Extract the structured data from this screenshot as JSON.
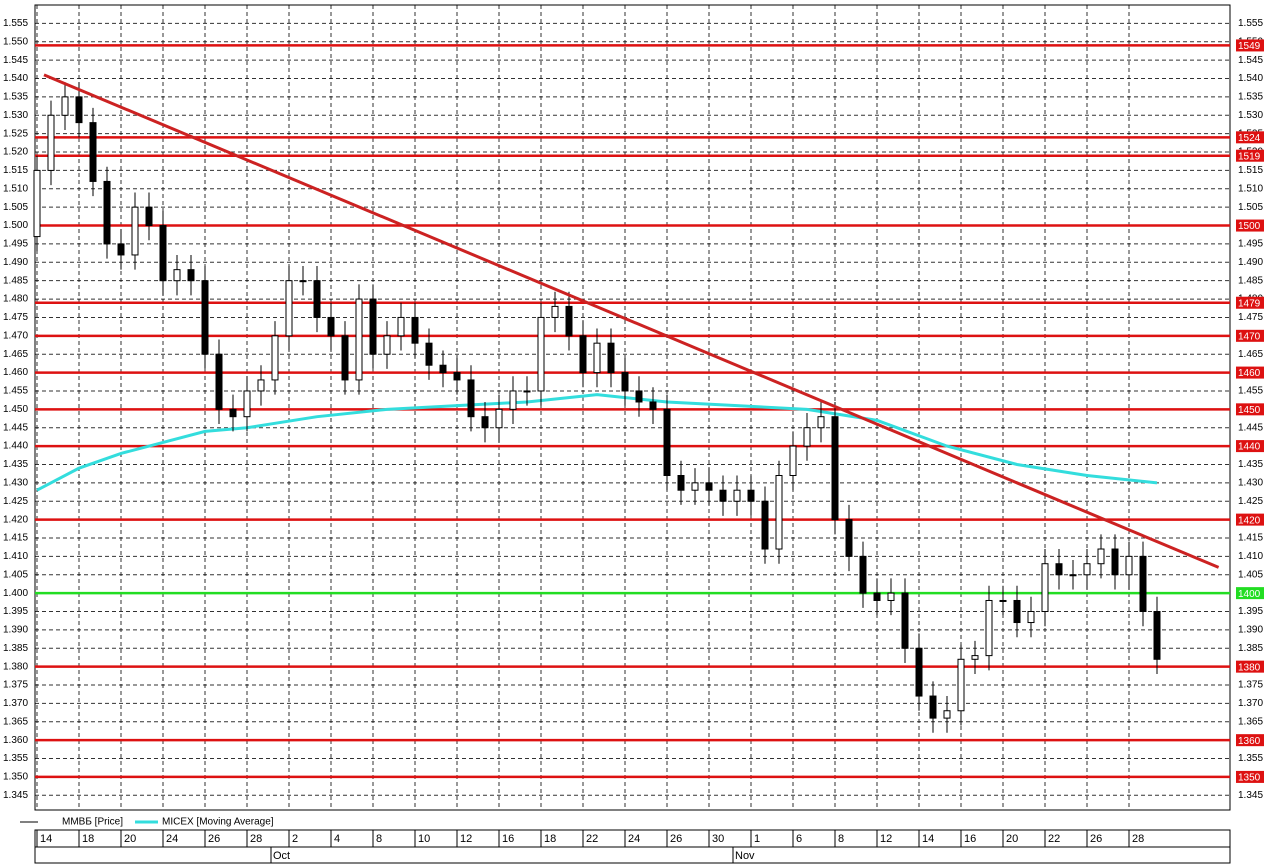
{
  "chart_data": {
    "type": "candlestick",
    "categories": [
      "14",
      "18",
      "20",
      "24",
      "26",
      "28",
      "2",
      "4",
      "8",
      "10",
      "12",
      "16",
      "18",
      "22",
      "24",
      "26",
      "30",
      "1",
      "6",
      "8",
      "12",
      "14",
      "16",
      "20",
      "22",
      "26",
      "28"
    ],
    "months": [
      {
        "value": 18,
        "label": "Oct"
      },
      {
        "value": 51,
        "label": "Nov"
      }
    ],
    "open": [
      1.497,
      1.515,
      1.53,
      1.535,
      1.528,
      1.512,
      1.495,
      1.492,
      1.505,
      1.5,
      1.485,
      1.488,
      1.485,
      1.465,
      1.45,
      1.448,
      1.455,
      1.458,
      1.47,
      1.485,
      1.485,
      1.475,
      1.47,
      1.458,
      1.48,
      1.465,
      1.47,
      1.475,
      1.468,
      1.462,
      1.46,
      1.458,
      1.448,
      1.445,
      1.45,
      1.455,
      1.455,
      1.475,
      1.478,
      1.47,
      1.46,
      1.468,
      1.46,
      1.455,
      1.452,
      1.45,
      1.432,
      1.428,
      1.43,
      1.428,
      1.425,
      1.428,
      1.425,
      1.412,
      1.432,
      1.44,
      1.445,
      1.448,
      1.42,
      1.41,
      1.4,
      1.398,
      1.4,
      1.385,
      1.372,
      1.366,
      1.368,
      1.382,
      1.383,
      1.398,
      1.398,
      1.392,
      1.395,
      1.408,
      1.405,
      1.405,
      1.408,
      1.412,
      1.405,
      1.41,
      1.395
    ],
    "high": [
      1.519,
      1.534,
      1.539,
      1.539,
      1.532,
      1.516,
      1.499,
      1.509,
      1.509,
      1.504,
      1.492,
      1.492,
      1.489,
      1.469,
      1.454,
      1.459,
      1.462,
      1.474,
      1.489,
      1.489,
      1.489,
      1.479,
      1.474,
      1.484,
      1.484,
      1.474,
      1.479,
      1.479,
      1.472,
      1.466,
      1.464,
      1.462,
      1.452,
      1.454,
      1.459,
      1.459,
      1.479,
      1.482,
      1.482,
      1.474,
      1.472,
      1.472,
      1.464,
      1.459,
      1.456,
      1.454,
      1.436,
      1.434,
      1.434,
      1.432,
      1.432,
      1.432,
      1.429,
      1.436,
      1.444,
      1.449,
      1.452,
      1.452,
      1.424,
      1.414,
      1.404,
      1.404,
      1.404,
      1.389,
      1.376,
      1.372,
      1.386,
      1.387,
      1.402,
      1.402,
      1.402,
      1.399,
      1.412,
      1.412,
      1.409,
      1.412,
      1.416,
      1.416,
      1.414,
      1.414,
      1.399
    ],
    "low": [
      1.493,
      1.511,
      1.526,
      1.524,
      1.508,
      1.491,
      1.488,
      1.488,
      1.496,
      1.481,
      1.481,
      1.481,
      1.461,
      1.446,
      1.444,
      1.444,
      1.451,
      1.454,
      1.466,
      1.481,
      1.471,
      1.466,
      1.454,
      1.454,
      1.461,
      1.461,
      1.466,
      1.464,
      1.458,
      1.456,
      1.454,
      1.444,
      1.441,
      1.441,
      1.446,
      1.451,
      1.451,
      1.471,
      1.466,
      1.456,
      1.456,
      1.456,
      1.451,
      1.448,
      1.446,
      1.428,
      1.424,
      1.424,
      1.424,
      1.421,
      1.421,
      1.421,
      1.408,
      1.408,
      1.428,
      1.436,
      1.441,
      1.416,
      1.406,
      1.396,
      1.394,
      1.394,
      1.381,
      1.368,
      1.362,
      1.362,
      1.364,
      1.378,
      1.379,
      1.394,
      1.388,
      1.388,
      1.391,
      1.401,
      1.401,
      1.401,
      1.404,
      1.401,
      1.401,
      1.391,
      1.378
    ],
    "close": [
      1.515,
      1.53,
      1.535,
      1.528,
      1.512,
      1.495,
      1.492,
      1.505,
      1.5,
      1.485,
      1.488,
      1.485,
      1.465,
      1.45,
      1.448,
      1.455,
      1.458,
      1.47,
      1.485,
      1.485,
      1.475,
      1.47,
      1.458,
      1.48,
      1.465,
      1.47,
      1.475,
      1.468,
      1.462,
      1.46,
      1.458,
      1.448,
      1.445,
      1.45,
      1.455,
      1.455,
      1.475,
      1.478,
      1.47,
      1.46,
      1.468,
      1.46,
      1.455,
      1.452,
      1.45,
      1.432,
      1.428,
      1.43,
      1.428,
      1.425,
      1.428,
      1.425,
      1.412,
      1.432,
      1.44,
      1.445,
      1.448,
      1.42,
      1.41,
      1.4,
      1.398,
      1.4,
      1.385,
      1.372,
      1.366,
      1.368,
      1.382,
      1.383,
      1.398,
      1.398,
      1.392,
      1.395,
      1.408,
      1.405,
      1.405,
      1.408,
      1.412,
      1.405,
      1.41,
      1.395,
      1.382
    ],
    "price_name": "ММВБ [Price]",
    "price_color": "#000000",
    "moving_average": {
      "name": "MICEX [Moving Average]",
      "color": "#33dddd",
      "x": [
        0,
        3,
        6,
        9,
        12,
        15,
        20,
        25,
        30,
        35,
        40,
        45,
        50,
        55,
        60,
        65,
        70,
        75,
        80
      ],
      "values": [
        1.428,
        1.434,
        1.438,
        1.441,
        1.444,
        1.445,
        1.448,
        1.45,
        1.451,
        1.452,
        1.454,
        1.452,
        1.451,
        1.45,
        1.447,
        1.44,
        1.435,
        1.432,
        1.43
      ]
    },
    "trend_line": {
      "color": "#cc2222",
      "x": [
        0.5,
        84.4
      ],
      "values": [
        1.541,
        1.407
      ]
    },
    "levels": [
      {
        "value": 1.549,
        "label": "1549",
        "color": "#dd1111"
      },
      {
        "value": 1.524,
        "label": "1524",
        "color": "#dd1111"
      },
      {
        "value": 1.519,
        "label": "1519",
        "color": "#dd1111"
      },
      {
        "value": 1.5,
        "label": "1500",
        "color": "#dd1111"
      },
      {
        "value": 1.479,
        "label": "1479",
        "color": "#dd1111"
      },
      {
        "value": 1.47,
        "label": "1470",
        "color": "#dd1111"
      },
      {
        "value": 1.46,
        "label": "1460",
        "color": "#dd1111"
      },
      {
        "value": 1.45,
        "label": "1450",
        "color": "#dd1111"
      },
      {
        "value": 1.44,
        "label": "1440",
        "color": "#dd1111"
      },
      {
        "value": 1.42,
        "label": "1420",
        "color": "#dd1111"
      },
      {
        "value": 1.4,
        "label": "1400",
        "color": "#22dd22"
      },
      {
        "value": 1.38,
        "label": "1380",
        "color": "#dd1111"
      },
      {
        "value": 1.36,
        "label": "1360",
        "color": "#dd1111"
      },
      {
        "value": 1.35,
        "label": "1350",
        "color": "#dd1111"
      }
    ],
    "ylim": [
      1.341,
      1.56
    ],
    "yticks": [
      1.345,
      {
        "value": 1.35,
        "label": "1.350"
      },
      1.355,
      {
        "value": 1.36,
        "label": "1.360"
      },
      1.365,
      {
        "value": 1.37,
        "label": "1.370"
      },
      1.375,
      {
        "value": 1.38,
        "label": "1.380"
      },
      1.385,
      {
        "value": 1.39,
        "label": "1.390"
      },
      1.395,
      {
        "value": 1.4,
        "label": "1.400"
      },
      1.405,
      {
        "value": 1.41,
        "label": "1.410"
      },
      1.415,
      {
        "value": 1.42,
        "label": "1.420"
      },
      1.425,
      {
        "value": 1.43,
        "label": "1.430"
      },
      1.435,
      {
        "value": 1.44,
        "label": "1.440"
      },
      1.445,
      {
        "value": 1.45,
        "label": "1.450"
      },
      1.455,
      {
        "value": 1.46,
        "label": "1.460"
      },
      1.465,
      {
        "value": 1.47,
        "label": "1.470"
      },
      1.475,
      {
        "value": 1.48,
        "label": "1.480"
      },
      1.485,
      {
        "value": 1.49,
        "label": "1.490"
      },
      1.495,
      {
        "value": 1.5,
        "label": "1.500"
      },
      1.505,
      {
        "value": 1.51,
        "label": "1.510"
      },
      1.515,
      {
        "value": 1.52,
        "label": "1.520"
      },
      1.525,
      {
        "value": 1.53,
        "label": "1.530"
      },
      1.535,
      {
        "value": 1.54,
        "label": "1.540"
      },
      1.545,
      {
        "value": 1.55,
        "label": "1.550"
      },
      1.555
    ],
    "grid": true
  }
}
